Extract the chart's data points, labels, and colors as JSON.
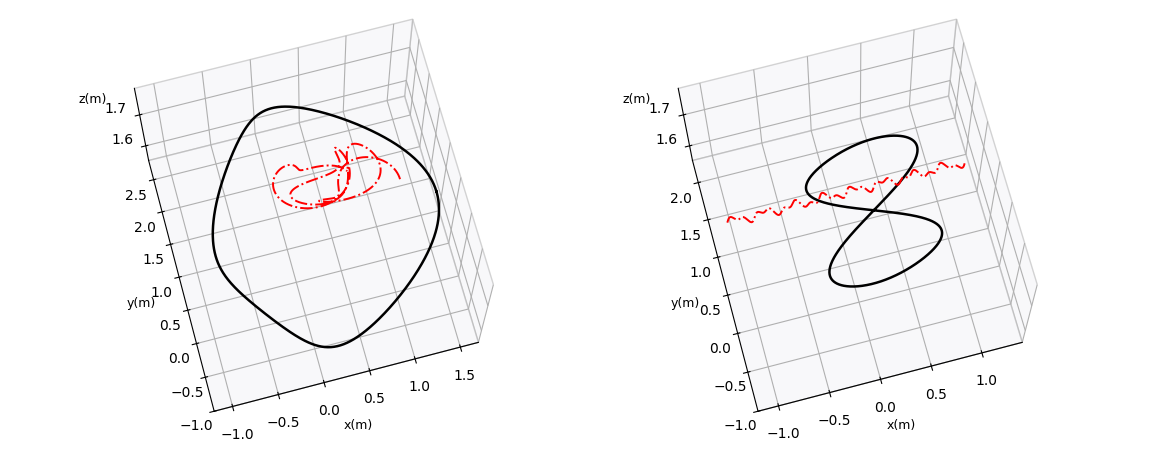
{
  "plot1": {
    "xlabel": "x(m)",
    "ylabel": "y(m)",
    "zlabel": "z(m)",
    "xlim": [
      -1.2,
      1.7
    ],
    "ylim": [
      -1.0,
      2.8
    ],
    "zlim": [
      1.55,
      1.78
    ],
    "zticks": [
      1.6,
      1.7
    ],
    "camera_elev": 72,
    "camera_azim": -105
  },
  "plot2": {
    "xlabel": "x(m)",
    "ylabel": "y(m)",
    "zlabel": "z(m)",
    "xlim": [
      -1.2,
      1.4
    ],
    "ylim": [
      -1.0,
      2.3
    ],
    "zlim": [
      1.55,
      1.78
    ],
    "zticks": [
      1.6,
      1.7
    ],
    "camera_elev": 72,
    "camera_azim": -105
  },
  "black_color": "#000000",
  "red_color": "#ff0000",
  "line_width": 1.8,
  "red_linewidth": 1.4
}
